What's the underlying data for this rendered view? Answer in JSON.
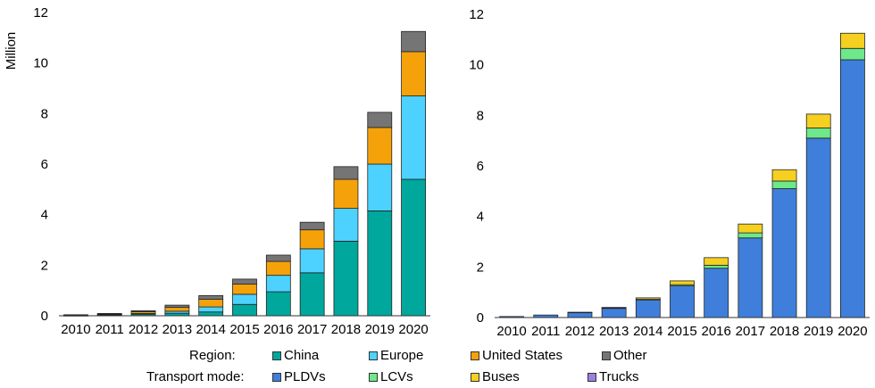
{
  "chart_data": [
    {
      "type": "bar",
      "stacked": true,
      "title": "",
      "xlabel": "",
      "ylabel": "Million",
      "ylim": [
        0,
        12
      ],
      "yticks": [
        0,
        2,
        4,
        6,
        8,
        10,
        12
      ],
      "categories": [
        "2010",
        "2011",
        "2012",
        "2013",
        "2014",
        "2015",
        "2016",
        "2017",
        "2018",
        "2019",
        "2020"
      ],
      "grid": false,
      "series": [
        {
          "name": "China",
          "color": "#00a79d",
          "values": [
            0.01,
            0.02,
            0.05,
            0.1,
            0.15,
            0.45,
            0.95,
            1.7,
            2.95,
            4.15,
            5.4
          ]
        },
        {
          "name": "Europe",
          "color": "#4dd2ff",
          "values": [
            0.01,
            0.02,
            0.04,
            0.08,
            0.2,
            0.4,
            0.65,
            0.95,
            1.3,
            1.85,
            3.3
          ]
        },
        {
          "name": "United States",
          "color": "#f5a20a",
          "values": [
            0.01,
            0.03,
            0.07,
            0.15,
            0.3,
            0.4,
            0.55,
            0.75,
            1.15,
            1.45,
            1.75
          ]
        },
        {
          "name": "Other",
          "color": "#757575",
          "values": [
            0.01,
            0.02,
            0.04,
            0.09,
            0.15,
            0.2,
            0.25,
            0.3,
            0.5,
            0.6,
            0.8
          ]
        }
      ]
    },
    {
      "type": "bar",
      "stacked": true,
      "title": "",
      "xlabel": "",
      "ylabel": "",
      "ylim": [
        0,
        12
      ],
      "yticks": [
        0,
        2,
        4,
        6,
        8,
        10,
        12
      ],
      "categories": [
        "2010",
        "2011",
        "2012",
        "2013",
        "2014",
        "2015",
        "2016",
        "2017",
        "2018",
        "2019",
        "2020"
      ],
      "grid": false,
      "series": [
        {
          "name": "PLDVs",
          "color": "#3f7fdb",
          "values": [
            0.04,
            0.1,
            0.2,
            0.37,
            0.7,
            1.25,
            1.95,
            3.15,
            5.1,
            7.1,
            10.2
          ]
        },
        {
          "name": "LCVs",
          "color": "#6ee88a",
          "values": [
            0.0,
            0.0,
            0.0,
            0.01,
            0.02,
            0.05,
            0.12,
            0.2,
            0.3,
            0.4,
            0.45
          ]
        },
        {
          "name": "Buses",
          "color": "#f5d020",
          "values": [
            0.0,
            0.0,
            0.01,
            0.02,
            0.06,
            0.15,
            0.3,
            0.35,
            0.45,
            0.55,
            0.6
          ]
        },
        {
          "name": "Trucks",
          "color": "#9b7fe0",
          "values": [
            0.0,
            0.0,
            0.0,
            0.0,
            0.0,
            0.0,
            0.0,
            0.0,
            0.0,
            0.0,
            0.0
          ]
        }
      ]
    }
  ],
  "legend": {
    "region_label": "Region:",
    "mode_label": "Transport mode:",
    "region_items": [
      {
        "label": "China",
        "color": "#00a79d"
      },
      {
        "label": "Europe",
        "color": "#4dd2ff"
      },
      {
        "label": "United States",
        "color": "#f5a20a"
      },
      {
        "label": "Other",
        "color": "#757575"
      }
    ],
    "mode_items": [
      {
        "label": "PLDVs",
        "color": "#3f7fdb"
      },
      {
        "label": "LCVs",
        "color": "#6ee88a"
      },
      {
        "label": "Buses",
        "color": "#f5d020"
      },
      {
        "label": "Trucks",
        "color": "#9b7fe0"
      }
    ]
  }
}
